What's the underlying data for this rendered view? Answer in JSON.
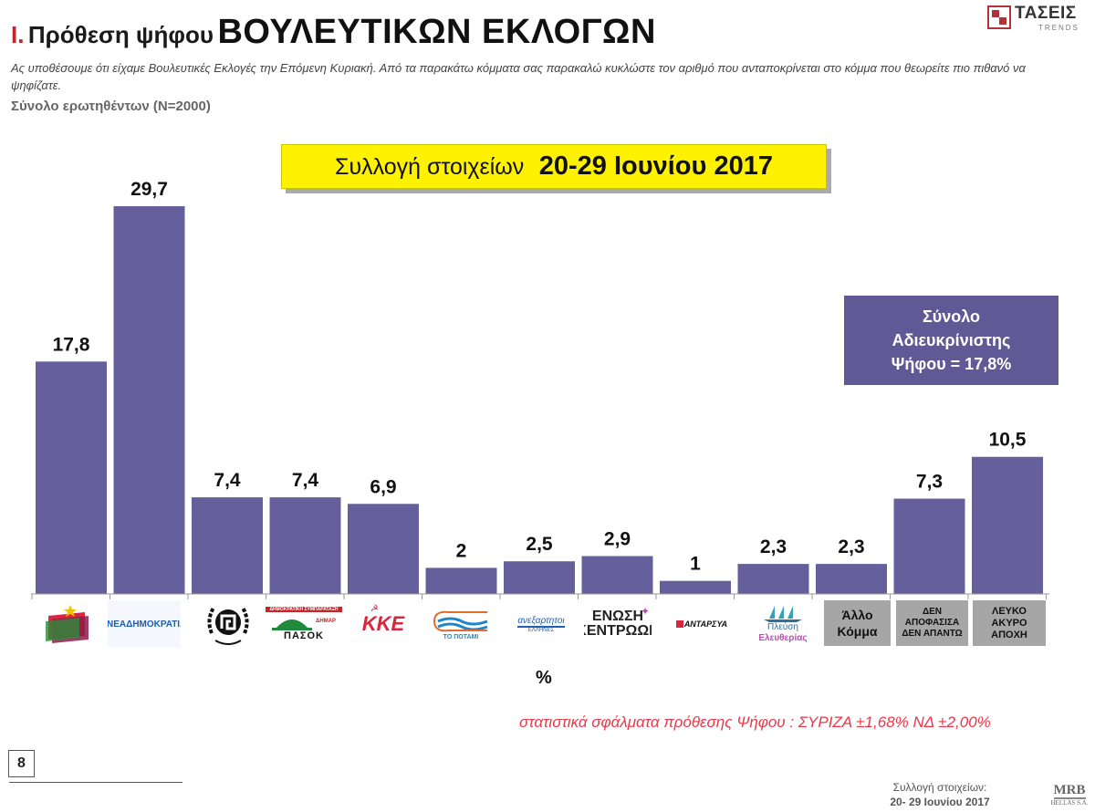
{
  "header": {
    "number": "I.",
    "title_small": "Πρόθεση ψήφου",
    "title_big": "ΒΟΥΛΕΥΤΙΚΩΝ ΕΚΛΟΓΩΝ",
    "brand_name": "ΤΑΣΕΙΣ",
    "brand_sub": "TRENDS"
  },
  "question": "Ας υποθέσουμε ότι είχαμε Βουλευτικές Εκλογές την Επόμενη Κυριακή. Από τα παρακάτω κόμματα σας παρακαλώ κυκλώστε τον αριθμό που ανταποκρίνεται στο κόμμα που θεωρείτε πιο πιθανό να ψηφίζατε.",
  "sample": "Σύνολο ερωτηθέντων (N=2000)",
  "collection": {
    "label": "Συλλογή στοιχείων",
    "dates": "20-29 Ιουνίου 2017"
  },
  "note_box": {
    "line1": "Σύνολο",
    "line2": "Αδιευκρίνιστης",
    "line3": "Ψήφου = 17,8%"
  },
  "colors": {
    "bar": "#65609b",
    "title_number": "#c0282e",
    "collect_box": "#fff200",
    "note_box": "#5f5a95",
    "errors_text": "#e8384a"
  },
  "chart_data": {
    "type": "bar",
    "categories": [
      "ΣΥΡΙΖΑ",
      "ΝΕΑ ΔΗΜΟΚΡΑΤΙΑ",
      "ΧΡΥΣΗ ΑΥΓΗ",
      "ΠΑΣΟΚ",
      "ΚΚΕ",
      "ΤΟ ΠΟΤΑΜΙ",
      "ΑΝΕΞΑΡΤΗΤΟΙ ΕΛΛΗΝΕΣ",
      "ΕΝΩΣΗ ΚΕΝΤΡΩΩΝ",
      "ΑΝΤΑΡΣΥΑ",
      "Πλεύση Ελευθερίας",
      "Άλλο Κόμμα",
      "ΔΕΝ ΑΠΟΦΑΣΙΣΑ ΔΕΝ ΑΠΑΝΤΩ",
      "ΛΕΥΚΟ ΑΚΥΡΟ ΑΠΟΧΗ"
    ],
    "values": [
      17.8,
      29.7,
      7.4,
      7.4,
      6.9,
      2,
      2.5,
      2.9,
      1,
      2.3,
      2.3,
      7.3,
      10.5
    ],
    "value_labels": [
      "17,8",
      "29,7",
      "7,4",
      "7,4",
      "6,9",
      "2",
      "2,5",
      "2,9",
      "1",
      "2,3",
      "2,3",
      "7,3",
      "10,5"
    ],
    "ylim": [
      0,
      30
    ],
    "grid": false,
    "legend": "none",
    "xlabel": "%"
  },
  "logos": {
    "nd": "ΝΕΑΔΗΜΟΚΡΑΤΙΑ",
    "pasok_top": "ΔΗΜΟΚΡΑΤΙΚΗ ΣΥΜΠΑΡΑΤΑΞΗ",
    "pasok_main": "ΠΑΣΟΚ",
    "pasok_dimar": "ΔΗΜΑΡ",
    "kke": "ΚΚΕ",
    "potami": "ΤΟ ΠΟΤΑΜΙ",
    "anel_main": "ανεξαρτητοι",
    "anel_sub": "ΕΛΛΗΝΕΣ",
    "ek_line1": "ΕΝΩΣΗ",
    "ek_line2": "ΚΕΝΤΡΩΩΝ",
    "antarsya": "ΑΝΤΑΡΣΥΑ",
    "plefsi_line1": "Πλεύση",
    "plefsi_line2": "Ελευθερίας",
    "other_line1": "Άλλο",
    "other_line2": "Κόμμα",
    "undecided_line1": "ΔΕΝ",
    "undecided_line2": "ΑΠΟΦΑΣΙΣΑ",
    "undecided_line3": "ΔΕΝ ΑΠΑΝΤΩ",
    "blank_line1": "ΛΕΥΚΟ",
    "blank_line2": "ΑΚΥΡΟ",
    "blank_line3": "ΑΠΟΧΗ"
  },
  "axis_unit": "%",
  "errors": "στατιστικά σφάλματα πρόθεσης Ψήφου : ΣΥΡΙΖΑ ±1,68% ΝΔ ±2,00%",
  "footer": {
    "page": "8",
    "source_label": "Συλλογή στοιχείων:",
    "source_dates": "20- 29 Ιουνίου 2017",
    "mrb": "MRB",
    "mrb_sub": "HELLAS S.A."
  }
}
